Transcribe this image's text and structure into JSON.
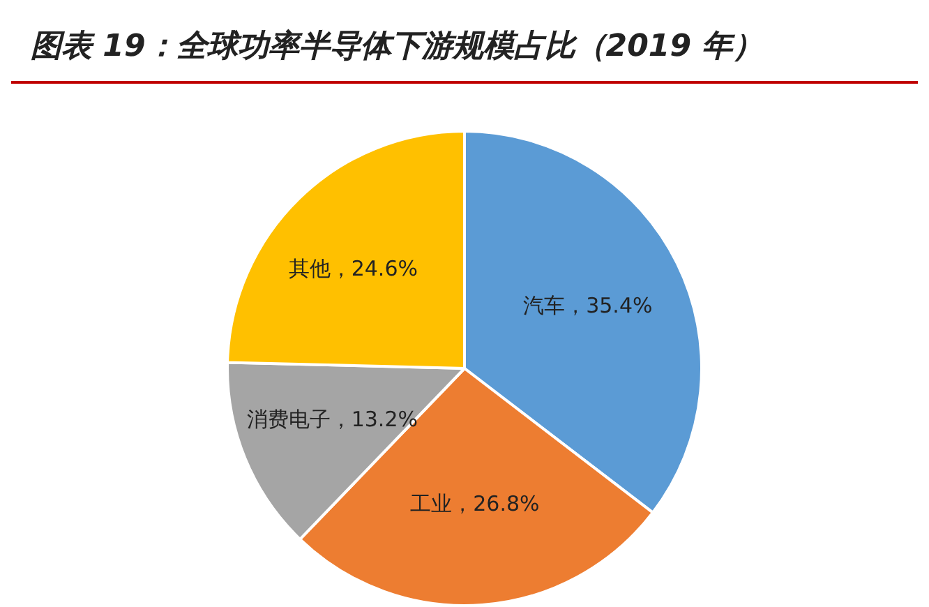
{
  "chart_data": {
    "type": "pie",
    "title": "图表 19：全球功率半导体下游规模占比（2019 年）",
    "categories": [
      "汽车",
      "工业",
      "消费电子",
      "其他"
    ],
    "values": [
      35.4,
      26.8,
      13.2,
      24.6
    ],
    "colors": [
      "#5b9bd5",
      "#ed7d31",
      "#a5a5a5",
      "#ffc000"
    ],
    "value_labels": [
      "，35.4%",
      "，26.8%",
      "，13.2%",
      "，24.6%"
    ],
    "legend": false
  }
}
